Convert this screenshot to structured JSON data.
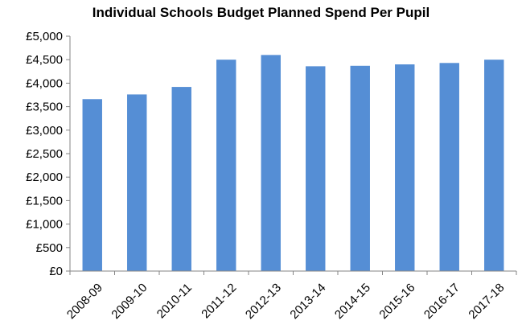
{
  "chart_data": {
    "type": "bar",
    "title": "Individual Schools Budget Planned Spend Per Pupil",
    "categories": [
      "2008-09",
      "2009-10",
      "2010-11",
      "2011-12",
      "2012-13",
      "2013-14",
      "2014-15",
      "2015-16",
      "2016-17",
      "2017-18"
    ],
    "values": [
      3660,
      3760,
      3920,
      4500,
      4600,
      4360,
      4370,
      4400,
      4430,
      4500
    ],
    "ylim": [
      0,
      5000
    ],
    "yticks": [
      0,
      500,
      1000,
      1500,
      2000,
      2500,
      3000,
      3500,
      4000,
      4500,
      5000
    ],
    "ytick_labels": [
      "£0",
      "£500",
      "£1,000",
      "£1,500",
      "£2,000",
      "£2,500",
      "£3,000",
      "£3,500",
      "£4,000",
      "£4,500",
      "£5,000"
    ],
    "xlabel": "",
    "ylabel": "",
    "grid": false,
    "legend": "none",
    "bar_color": "#558ED5"
  }
}
